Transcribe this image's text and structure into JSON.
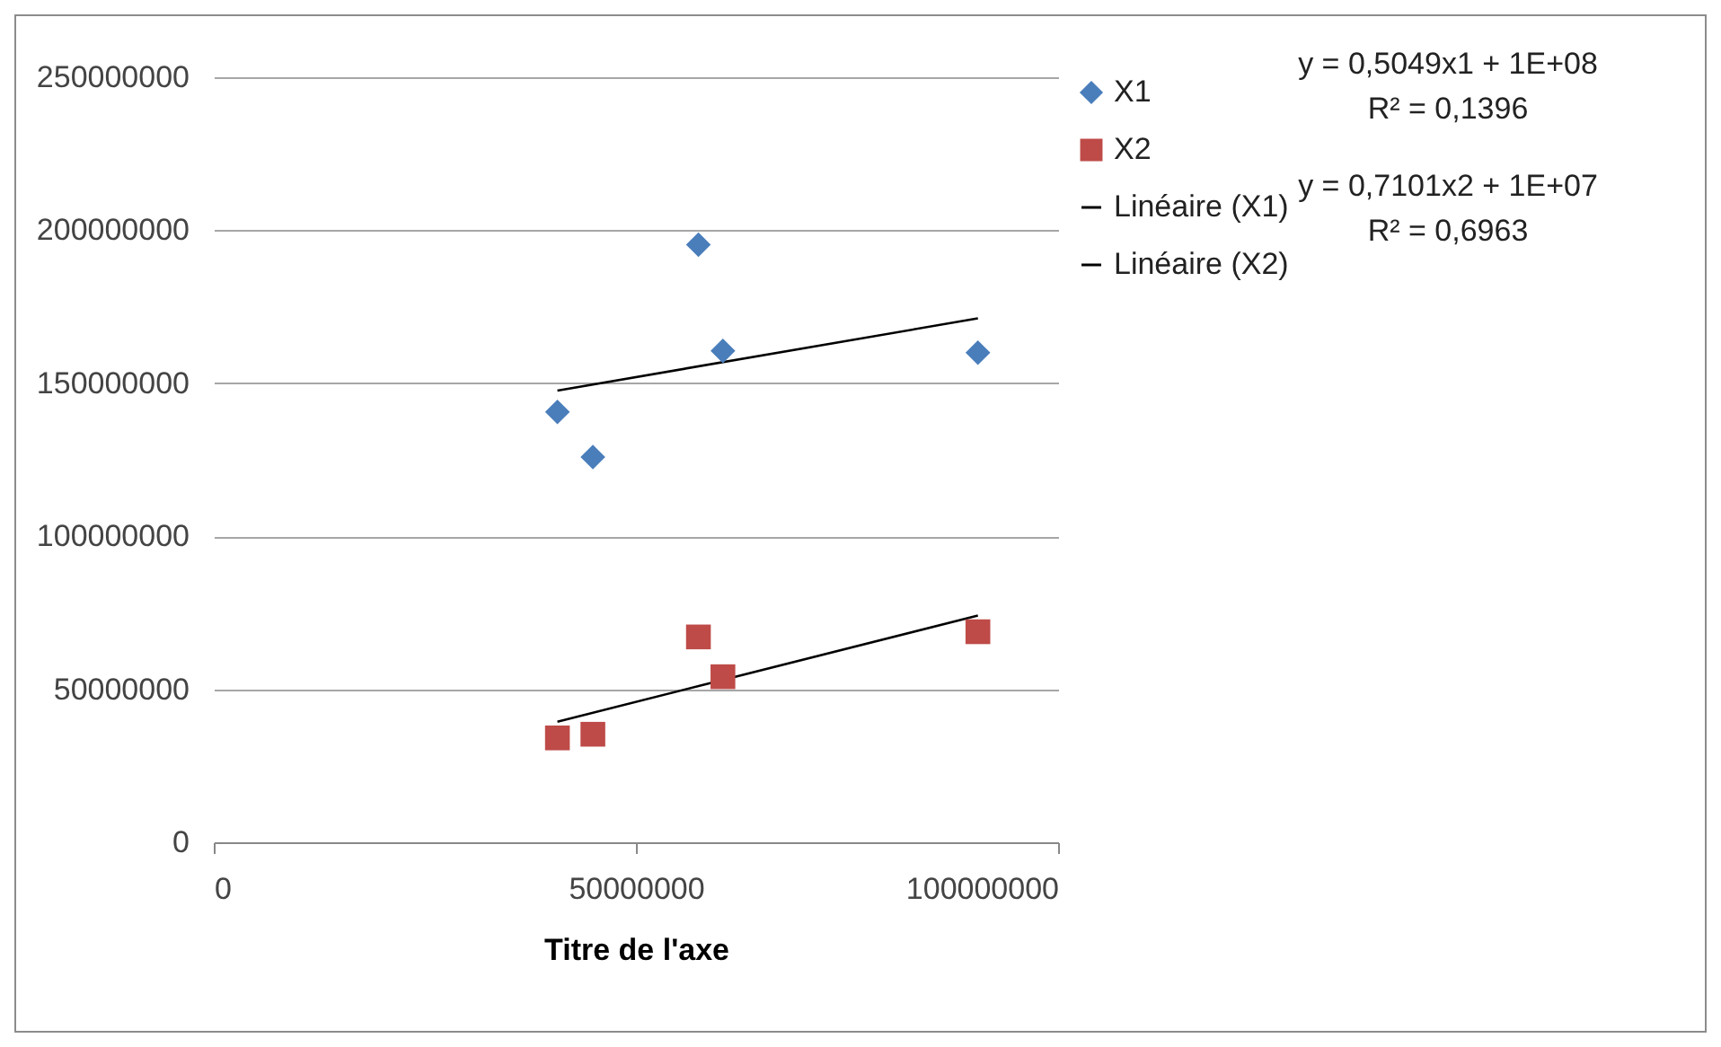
{
  "chart_data": {
    "type": "scatter",
    "xlabel": "Titre de l'axe",
    "xlim": [
      0,
      100000000
    ],
    "xticks": [
      0,
      50000000,
      100000000
    ],
    "ylim": [
      0,
      250000000
    ],
    "yticks": [
      0,
      50000000,
      100000000,
      150000000,
      200000000,
      250000000
    ],
    "grid": "y",
    "legend": "right",
    "annotations": [
      "y = 0,5049x1 + 1E+08",
      "R² = 0,1396",
      "y = 0,7101x2 + 1E+07",
      "R² = 0,6963"
    ],
    "series": [
      {
        "name": "X1",
        "color": "#4a7ebb",
        "marker": "diamond",
        "x": [
          40700000,
          44900000,
          57400000,
          60300000,
          90500000
        ],
        "values": [
          140600000,
          125900000,
          195300000,
          160600000,
          160000000
        ]
      },
      {
        "name": "X2",
        "color": "#be4b48",
        "marker": "square",
        "x": [
          40700000,
          44900000,
          57400000,
          60300000,
          90500000
        ],
        "values": [
          34100000,
          35300000,
          67100000,
          54100000,
          68800000
        ]
      },
      {
        "name": "Linéaire (X1)",
        "type": "line",
        "color": "#000000",
        "marker": "none",
        "x": [
          40700000,
          90500000
        ],
        "values": [
          147600000,
          171200000
        ]
      },
      {
        "name": "Linéaire (X2)",
        "type": "line",
        "color": "#000000",
        "marker": "none",
        "x": [
          40700000,
          90500000
        ],
        "values": [
          39400000,
          74100000
        ]
      }
    ]
  }
}
